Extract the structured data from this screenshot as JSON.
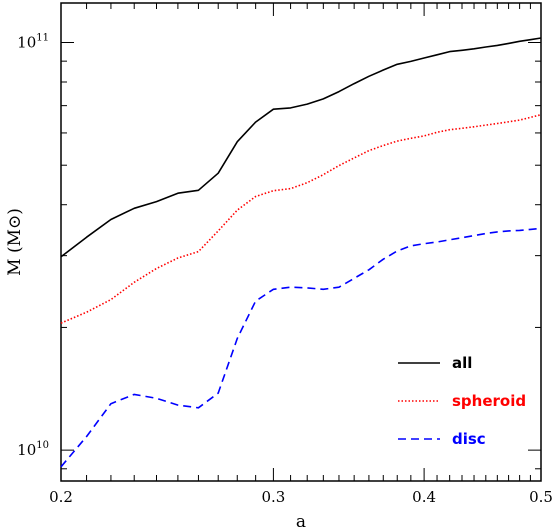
{
  "chart_data": {
    "type": "line",
    "xlabel": "a",
    "ylabel": "M (M⊙)",
    "xscale": "log",
    "yscale": "log",
    "xlim": [
      0.2,
      0.5
    ],
    "ylim": [
      8400000000.0,
      125000000000.0
    ],
    "x_ticks": [
      {
        "value": 0.2,
        "label": "0.2"
      },
      {
        "value": 0.3,
        "label": "0.3"
      },
      {
        "value": 0.4,
        "label": "0.4"
      },
      {
        "value": 0.5,
        "label": "0.5"
      }
    ],
    "y_ticks": [
      {
        "value": 10000000000.0,
        "base": "10",
        "exp": "10"
      },
      {
        "value": 100000000000.0,
        "base": "10",
        "exp": "11"
      }
    ],
    "legend_position": "lower-right",
    "series": [
      {
        "name": "all",
        "color": "#000000",
        "dash": "solid",
        "points": [
          [
            0.2,
            29800000000.0
          ],
          [
            0.21,
            33300000000.0
          ],
          [
            0.22,
            36800000000.0
          ],
          [
            0.23,
            39200000000.0
          ],
          [
            0.24,
            40700000000.0
          ],
          [
            0.25,
            42700000000.0
          ],
          [
            0.26,
            43400000000.0
          ],
          [
            0.27,
            47800000000.0
          ],
          [
            0.28,
            57100000000.0
          ],
          [
            0.29,
            63800000000.0
          ],
          [
            0.3,
            68600000000.0
          ],
          [
            0.31,
            69100000000.0
          ],
          [
            0.32,
            70600000000.0
          ],
          [
            0.33,
            72700000000.0
          ],
          [
            0.34,
            75800000000.0
          ],
          [
            0.35,
            79300000000.0
          ],
          [
            0.36,
            82600000000.0
          ],
          [
            0.37,
            85600000000.0
          ],
          [
            0.38,
            88400000000.0
          ],
          [
            0.39,
            89900000000.0
          ],
          [
            0.4,
            91600000000.0
          ],
          [
            0.41,
            93300000000.0
          ],
          [
            0.42,
            95000000000.0
          ],
          [
            0.43,
            95700000000.0
          ],
          [
            0.44,
            96500000000.0
          ],
          [
            0.45,
            97500000000.0
          ],
          [
            0.46,
            98400000000.0
          ],
          [
            0.47,
            99500000000.0
          ],
          [
            0.48,
            100700000000.0
          ],
          [
            0.49,
            101600000000.0
          ],
          [
            0.5,
            102600000000.0
          ]
        ]
      },
      {
        "name": "spheroid",
        "color": "#ff0000",
        "dash": "dotted",
        "points": [
          [
            0.2,
            20500000000.0
          ],
          [
            0.21,
            21800000000.0
          ],
          [
            0.22,
            23400000000.0
          ],
          [
            0.23,
            25800000000.0
          ],
          [
            0.24,
            27900000000.0
          ],
          [
            0.25,
            29600000000.0
          ],
          [
            0.26,
            30700000000.0
          ],
          [
            0.27,
            34500000000.0
          ],
          [
            0.28,
            38800000000.0
          ],
          [
            0.29,
            41900000000.0
          ],
          [
            0.3,
            43300000000.0
          ],
          [
            0.31,
            43800000000.0
          ],
          [
            0.32,
            45300000000.0
          ],
          [
            0.33,
            47400000000.0
          ],
          [
            0.34,
            49900000000.0
          ],
          [
            0.35,
            52100000000.0
          ],
          [
            0.36,
            54300000000.0
          ],
          [
            0.37,
            55900000000.0
          ],
          [
            0.38,
            57300000000.0
          ],
          [
            0.39,
            58200000000.0
          ],
          [
            0.4,
            59000000000.0
          ],
          [
            0.41,
            60200000000.0
          ],
          [
            0.42,
            61100000000.0
          ],
          [
            0.43,
            61600000000.0
          ],
          [
            0.44,
            62100000000.0
          ],
          [
            0.45,
            62700000000.0
          ],
          [
            0.46,
            63300000000.0
          ],
          [
            0.47,
            63900000000.0
          ],
          [
            0.48,
            64500000000.0
          ],
          [
            0.49,
            65500000000.0
          ],
          [
            0.5,
            66500000000.0
          ]
        ]
      },
      {
        "name": "disc",
        "color": "#0000ff",
        "dash": "dashed",
        "points": [
          [
            0.2,
            9100000000.0
          ],
          [
            0.21,
            10800000000.0
          ],
          [
            0.22,
            13000000000.0
          ],
          [
            0.23,
            13700000000.0
          ],
          [
            0.24,
            13400000000.0
          ],
          [
            0.25,
            12900000000.0
          ],
          [
            0.26,
            12700000000.0
          ],
          [
            0.27,
            13800000000.0
          ],
          [
            0.28,
            18800000000.0
          ],
          [
            0.29,
            23200000000.0
          ],
          [
            0.3,
            24800000000.0
          ],
          [
            0.31,
            25100000000.0
          ],
          [
            0.32,
            25000000000.0
          ],
          [
            0.33,
            24800000000.0
          ],
          [
            0.34,
            25100000000.0
          ],
          [
            0.35,
            26400000000.0
          ],
          [
            0.36,
            27700000000.0
          ],
          [
            0.37,
            29400000000.0
          ],
          [
            0.38,
            30800000000.0
          ],
          [
            0.39,
            31700000000.0
          ],
          [
            0.4,
            32100000000.0
          ],
          [
            0.41,
            32400000000.0
          ],
          [
            0.42,
            32800000000.0
          ],
          [
            0.43,
            33200000000.0
          ],
          [
            0.44,
            33600000000.0
          ],
          [
            0.45,
            34000000000.0
          ],
          [
            0.46,
            34300000000.0
          ],
          [
            0.47,
            34500000000.0
          ],
          [
            0.48,
            34600000000.0
          ],
          [
            0.49,
            34800000000.0
          ],
          [
            0.5,
            35000000000.0
          ]
        ]
      }
    ]
  }
}
